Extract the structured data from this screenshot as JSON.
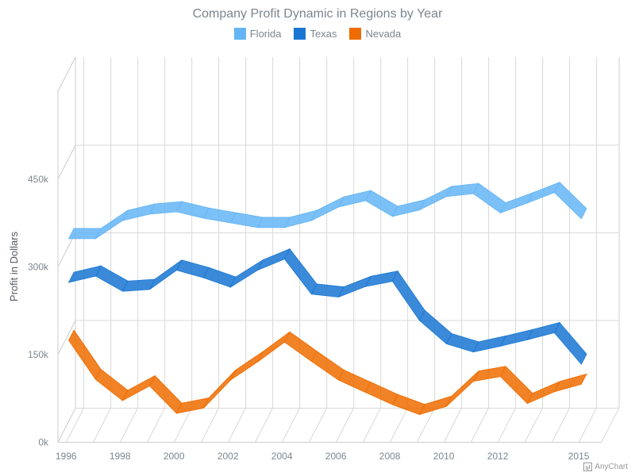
{
  "chart_data": {
    "type": "line",
    "title": "Company Profit Dynamic in Regions by Year",
    "ylabel": "Profit in Dollars",
    "xlabel": "",
    "ylim": [
      0,
      450000
    ],
    "yticks": [
      {
        "value": 0,
        "label": "0k"
      },
      {
        "value": 150000,
        "label": "150k"
      },
      {
        "value": 300000,
        "label": "300k"
      },
      {
        "value": 450000,
        "label": "450k"
      }
    ],
    "x": [
      1996,
      1997,
      1998,
      1999,
      2000,
      2001,
      2002,
      2003,
      2004,
      2005,
      2006,
      2007,
      2008,
      2009,
      2010,
      2011,
      2012,
      2013,
      2014,
      2015
    ],
    "xtick_labels": [
      "1996",
      "1998",
      "2000",
      "2002",
      "2004",
      "2006",
      "2008",
      "2010",
      "2012",
      "2015"
    ],
    "xtick_values": [
      1996,
      1998,
      2000,
      2002,
      2004,
      2006,
      2008,
      2010,
      2012,
      2015
    ],
    "legend_position": "top-center",
    "grid": true,
    "series": [
      {
        "name": "Florida",
        "color": "#64b5f6",
        "values": [
          339000,
          339000,
          370000,
          381000,
          385000,
          374000,
          366000,
          358000,
          358000,
          370000,
          393000,
          404000,
          377000,
          388000,
          411000,
          416000,
          383000,
          400000,
          418000,
          373000
        ]
      },
      {
        "name": "Texas",
        "color": "#1976d2",
        "values": [
          264000,
          275000,
          249000,
          252000,
          285000,
          272000,
          256000,
          285000,
          304000,
          244000,
          239000,
          257000,
          266000,
          199000,
          159000,
          145000,
          155000,
          166000,
          178000,
          124000
        ]
      },
      {
        "name": "Nevada",
        "color": "#ef6c00",
        "values": [
          165000,
          98000,
          62000,
          87000,
          40000,
          49000,
          97000,
          128000,
          162000,
          129000,
          97000,
          76000,
          55000,
          38000,
          52000,
          95000,
          103000,
          57000,
          77000,
          90000
        ]
      }
    ]
  },
  "credits": {
    "label": "AnyChart"
  }
}
